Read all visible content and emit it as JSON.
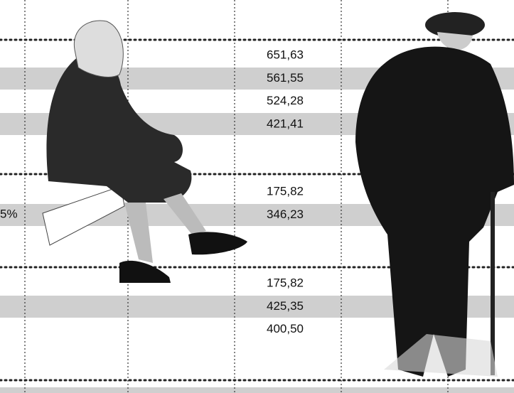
{
  "groups": [
    {
      "values": [
        "651,63",
        "561,55",
        "524,28",
        "421,41"
      ]
    },
    {
      "values": [
        "175,82",
        "346,23"
      ]
    },
    {
      "values": [
        "175,82",
        "425,35",
        "400,50"
      ]
    }
  ],
  "side_label": "5%"
}
